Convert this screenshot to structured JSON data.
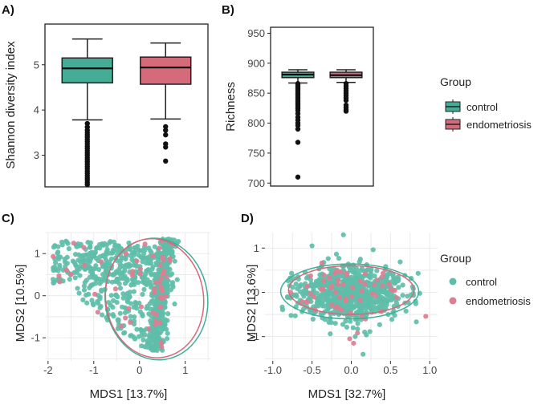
{
  "colors": {
    "control": "#3fae98",
    "endometriosis": "#d8677a",
    "control_fill": "#45ad95",
    "endometriosis_fill": "#d46a7a",
    "point_control": "#5fbea9",
    "point_endometriosis": "#db7f92",
    "grid": "#e6e6e6",
    "box_border": "#222222"
  },
  "chart_data": [
    {
      "panel": "A)",
      "type": "boxplot",
      "xlabel": "",
      "ylabel": "Shannon diversity index",
      "ylim": [
        2.3,
        5.9
      ],
      "yticks": [
        3,
        4,
        5
      ],
      "groups": [
        {
          "name": "control",
          "min": 3.78,
          "q1": 4.6,
          "median": 4.92,
          "q3": 5.15,
          "max": 5.57,
          "outliers": [
            3.7,
            3.62,
            3.55,
            3.5,
            3.45,
            3.4,
            3.35,
            3.3,
            3.25,
            3.2,
            3.15,
            3.1,
            3.05,
            3.0,
            2.95,
            2.9,
            2.85,
            2.8,
            2.75,
            2.7,
            2.65,
            2.6,
            2.55,
            2.5,
            2.45,
            2.4,
            2.35
          ]
        },
        {
          "name": "endometriosis",
          "min": 3.8,
          "q1": 4.57,
          "median": 4.94,
          "q3": 5.17,
          "max": 5.48,
          "outliers": [
            3.63,
            3.55,
            3.45,
            3.25,
            3.18,
            2.87
          ]
        }
      ]
    },
    {
      "panel": "B)",
      "type": "boxplot",
      "xlabel": "",
      "ylabel": "Richness",
      "ylim": [
        695,
        960
      ],
      "yticks": [
        700,
        750,
        800,
        850,
        900,
        950
      ],
      "groups": [
        {
          "name": "control",
          "min": 867,
          "q1": 876,
          "median": 881,
          "q3": 885,
          "max": 889,
          "outliers": [
            866,
            863,
            860,
            857,
            854,
            851,
            848,
            845,
            842,
            839,
            836,
            833,
            830,
            827,
            824,
            821,
            816,
            810,
            805,
            800,
            796,
            790,
            768,
            710
          ]
        },
        {
          "name": "endometriosis",
          "min": 868,
          "q1": 876,
          "median": 880,
          "q3": 885,
          "max": 889,
          "outliers": [
            866,
            862,
            858,
            854,
            850,
            846,
            842,
            838,
            830,
            826,
            822,
            820
          ]
        }
      ]
    },
    {
      "panel": "C)",
      "type": "scatter",
      "xlabel": "MDS1 [13.7%]",
      "ylabel": "MDS2 [10.5%]",
      "xlim": [
        -2.05,
        1.55
      ],
      "ylim": [
        -1.55,
        1.5
      ],
      "xticks": [
        -2,
        -1,
        0,
        1
      ],
      "yticks": [
        -1,
        0,
        1
      ],
      "n_points": {
        "control": 900,
        "endometriosis": 60
      },
      "ellipses": [
        {
          "group": "control",
          "center": [
            0.37,
            -0.08
          ],
          "radii": [
            1.12,
            1.45
          ],
          "angle_deg": -8
        },
        {
          "group": "endometriosis",
          "center": [
            0.33,
            -0.06
          ],
          "radii": [
            1.07,
            1.42
          ],
          "angle_deg": -8
        }
      ]
    },
    {
      "panel": "D)",
      "type": "scatter",
      "xlabel": "MDS1 [32.7%]",
      "ylabel": "MDS2 [13.6%]",
      "xlim": [
        -1.1,
        1.1
      ],
      "ylim": [
        -1.55,
        1.35
      ],
      "xticks": [
        -1.0,
        -0.5,
        0.0,
        0.5,
        1.0
      ],
      "xtick_labels": [
        "-1.0",
        "-0.5",
        "0.0",
        "0.5",
        "1.0"
      ],
      "yticks": [
        -1,
        0,
        1
      ],
      "n_points": {
        "control": 800,
        "endometriosis": 60
      },
      "ellipses": [
        {
          "group": "control",
          "center": [
            -0.02,
            0.02
          ],
          "radii": [
            0.88,
            0.62
          ],
          "angle_deg": 0
        },
        {
          "group": "endometriosis",
          "center": [
            0.0,
            0.05
          ],
          "radii": [
            0.8,
            0.55
          ],
          "angle_deg": 0
        }
      ]
    }
  ],
  "legends": [
    {
      "title": "Group",
      "style": "box",
      "items": [
        "control",
        "endometriosis"
      ]
    },
    {
      "title": "Group",
      "style": "point",
      "items": [
        "control",
        "endometriosis"
      ]
    }
  ]
}
